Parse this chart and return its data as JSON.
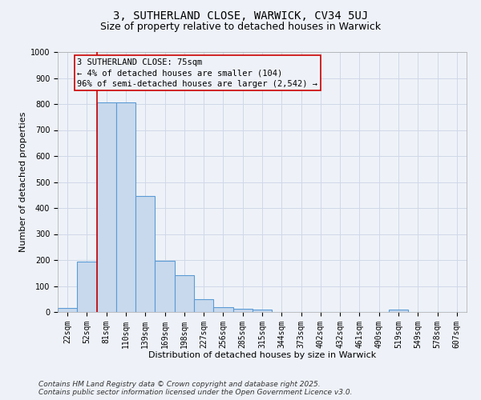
{
  "title1": "3, SUTHERLAND CLOSE, WARWICK, CV34 5UJ",
  "title2": "Size of property relative to detached houses in Warwick",
  "xlabel": "Distribution of detached houses by size in Warwick",
  "ylabel": "Number of detached properties",
  "bin_labels": [
    "22sqm",
    "52sqm",
    "81sqm",
    "110sqm",
    "139sqm",
    "169sqm",
    "198sqm",
    "227sqm",
    "256sqm",
    "285sqm",
    "315sqm",
    "344sqm",
    "373sqm",
    "402sqm",
    "432sqm",
    "461sqm",
    "490sqm",
    "519sqm",
    "549sqm",
    "578sqm",
    "607sqm"
  ],
  "bar_heights": [
    15,
    195,
    805,
    805,
    445,
    198,
    142,
    50,
    18,
    12,
    10,
    0,
    0,
    0,
    0,
    0,
    0,
    8,
    0,
    0,
    0
  ],
  "bar_color": "#c8d9ed",
  "bar_edge_color": "#5b9bd5",
  "grid_color": "#d0d8e8",
  "property_line_color": "#cc0000",
  "annotation_text": "3 SUTHERLAND CLOSE: 75sqm\n← 4% of detached houses are smaller (104)\n96% of semi-detached houses are larger (2,542) →",
  "annotation_box_color": "#cc0000",
  "ylim": [
    0,
    1000
  ],
  "yticks": [
    0,
    100,
    200,
    300,
    400,
    500,
    600,
    700,
    800,
    900,
    1000
  ],
  "background_color": "#eef2f8",
  "footer_line1": "Contains HM Land Registry data © Crown copyright and database right 2025.",
  "footer_line2": "Contains public sector information licensed under the Open Government Licence v3.0.",
  "title_fontsize": 10,
  "subtitle_fontsize": 9,
  "axis_label_fontsize": 8,
  "tick_fontsize": 7,
  "annotation_fontsize": 7.5,
  "footer_fontsize": 6.5
}
